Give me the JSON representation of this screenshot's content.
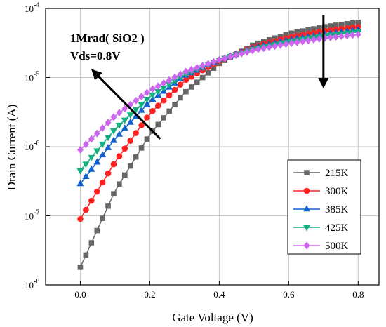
{
  "chart_data": {
    "type": "line",
    "xlabel": "Gate Voltage (V)",
    "ylabel": "Drain Current (A)",
    "xlim": [
      -0.1,
      0.86
    ],
    "ylim": [
      1e-08,
      0.0001
    ],
    "yscale": "log",
    "grid": true,
    "x_ticks": [
      "0.0",
      "0.2",
      "0.4",
      "0.6",
      "0.8"
    ],
    "y_ticks": [
      {
        "base": "10",
        "exp": "-8"
      },
      {
        "base": "10",
        "exp": "-7"
      },
      {
        "base": "10",
        "exp": "-6"
      },
      {
        "base": "10",
        "exp": "-5"
      },
      {
        "base": "10",
        "exp": "-4"
      }
    ],
    "annotations": [
      "1Mrad( SiO2 )",
      "Vds=0.8V"
    ],
    "legend_position": "bottom-right",
    "series": [
      {
        "name": "215K",
        "color": "#666666",
        "marker": "square",
        "anchors": [
          [
            0.0,
            1.8e-08
          ],
          [
            0.1,
            2.3e-07
          ],
          [
            0.2,
            1.5e-06
          ],
          [
            0.3,
            6e-06
          ],
          [
            0.4,
            1.6e-05
          ],
          [
            0.5,
            3e-05
          ],
          [
            0.6,
            4.3e-05
          ],
          [
            0.7,
            5.4e-05
          ],
          [
            0.8,
            6.3e-05
          ]
        ]
      },
      {
        "name": "300K",
        "color": "#ff2020",
        "marker": "circle",
        "anchors": [
          [
            0.0,
            9e-08
          ],
          [
            0.1,
            6e-07
          ],
          [
            0.2,
            3e-06
          ],
          [
            0.3,
            9e-06
          ],
          [
            0.4,
            1.75e-05
          ],
          [
            0.5,
            2.8e-05
          ],
          [
            0.6,
            3.8e-05
          ],
          [
            0.7,
            4.7e-05
          ],
          [
            0.8,
            5.4e-05
          ]
        ]
      },
      {
        "name": "385K",
        "color": "#1060d0",
        "marker": "triangle-up",
        "anchors": [
          [
            0.0,
            2.9e-07
          ],
          [
            0.1,
            1.3e-06
          ],
          [
            0.2,
            4.5e-06
          ],
          [
            0.3,
            1.05e-05
          ],
          [
            0.4,
            1.8e-05
          ],
          [
            0.5,
            2.7e-05
          ],
          [
            0.6,
            3.5e-05
          ],
          [
            0.7,
            4.2e-05
          ],
          [
            0.8,
            4.9e-05
          ]
        ]
      },
      {
        "name": "425K",
        "color": "#10b080",
        "marker": "triangle-down",
        "anchors": [
          [
            0.0,
            4.5e-07
          ],
          [
            0.1,
            1.8e-06
          ],
          [
            0.2,
            5.3e-06
          ],
          [
            0.3,
            1.1e-05
          ],
          [
            0.4,
            1.8e-05
          ],
          [
            0.5,
            2.6e-05
          ],
          [
            0.6,
            3.3e-05
          ],
          [
            0.7,
            4e-05
          ],
          [
            0.8,
            4.6e-05
          ]
        ]
      },
      {
        "name": "500K",
        "color": "#cc66ee",
        "marker": "diamond",
        "anchors": [
          [
            0.0,
            9e-07
          ],
          [
            0.1,
            2.8e-06
          ],
          [
            0.2,
            6.5e-06
          ],
          [
            0.3,
            1.2e-05
          ],
          [
            0.4,
            1.8e-05
          ],
          [
            0.5,
            2.5e-05
          ],
          [
            0.6,
            3.1e-05
          ],
          [
            0.7,
            3.7e-05
          ],
          [
            0.8,
            4.2e-05
          ]
        ]
      }
    ],
    "arrows": [
      {
        "from": [
          0.23,
          1.3e-06
        ],
        "to": [
          0.04,
          1.2e-05
        ]
      },
      {
        "from": [
          0.7,
          8e-05
        ],
        "to": [
          0.7,
          8e-06
        ]
      }
    ]
  }
}
